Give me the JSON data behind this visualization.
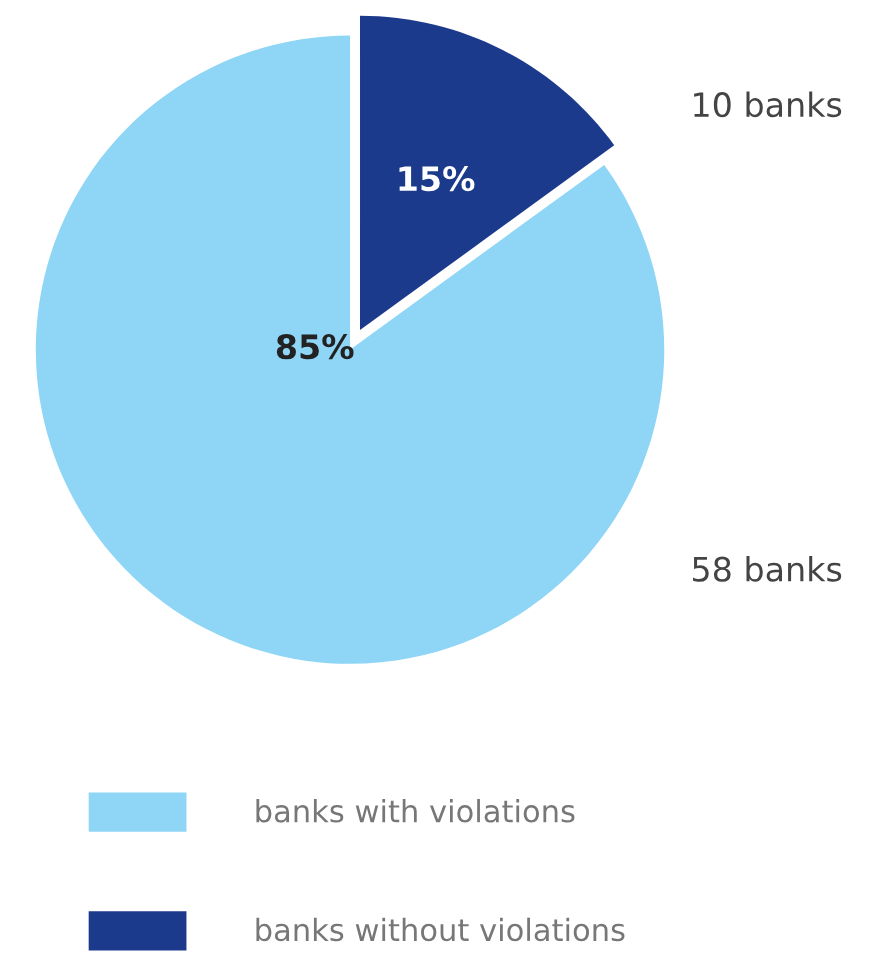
{
  "chart_data": {
    "type": "pie",
    "categories": [
      "banks with violations",
      "banks without violations"
    ],
    "values": [
      85,
      15
    ],
    "colors": [
      "#8fd5f6",
      "#1b3a8c"
    ],
    "value_labels": [
      "85%",
      "15%"
    ],
    "annotations": [
      "58 banks",
      "10 banks"
    ],
    "legend": "bottom"
  }
}
